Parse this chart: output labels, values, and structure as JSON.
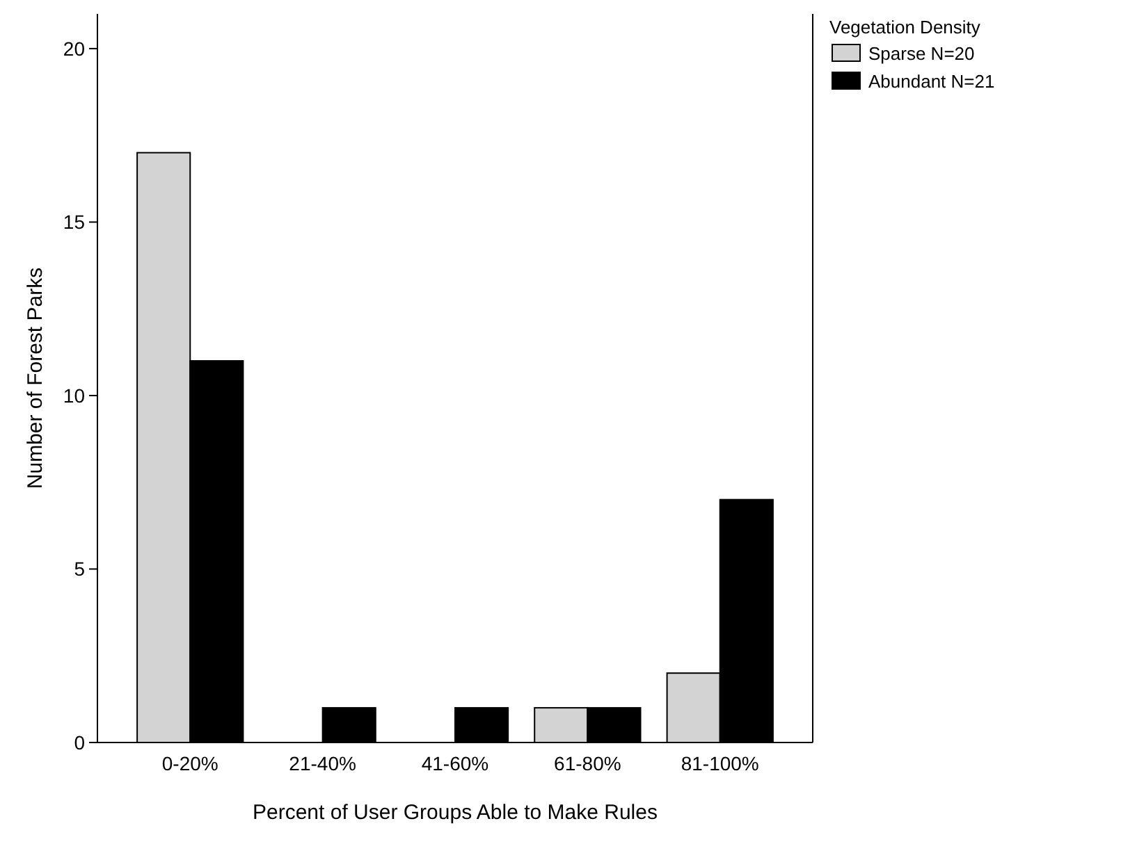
{
  "chart_data": {
    "type": "bar",
    "xlabel": "Percent of User Groups Able to Make Rules",
    "ylabel": "Number of Forest Parks",
    "legend_title": "Vegetation Density",
    "categories": [
      "0-20%",
      "21-40%",
      "41-60%",
      "61-80%",
      "81-100%"
    ],
    "series": [
      {
        "name": "Sparse N=20",
        "color": "#d3d3d3",
        "values": [
          17,
          0,
          0,
          1,
          2
        ]
      },
      {
        "name": "Abundant N=21",
        "color": "#000000",
        "values": [
          11,
          1,
          1,
          1,
          7
        ]
      }
    ],
    "ylim": [
      0,
      21
    ],
    "yticks": [
      0,
      5,
      10,
      15,
      20
    ],
    "grid": false,
    "legend": "top right"
  }
}
